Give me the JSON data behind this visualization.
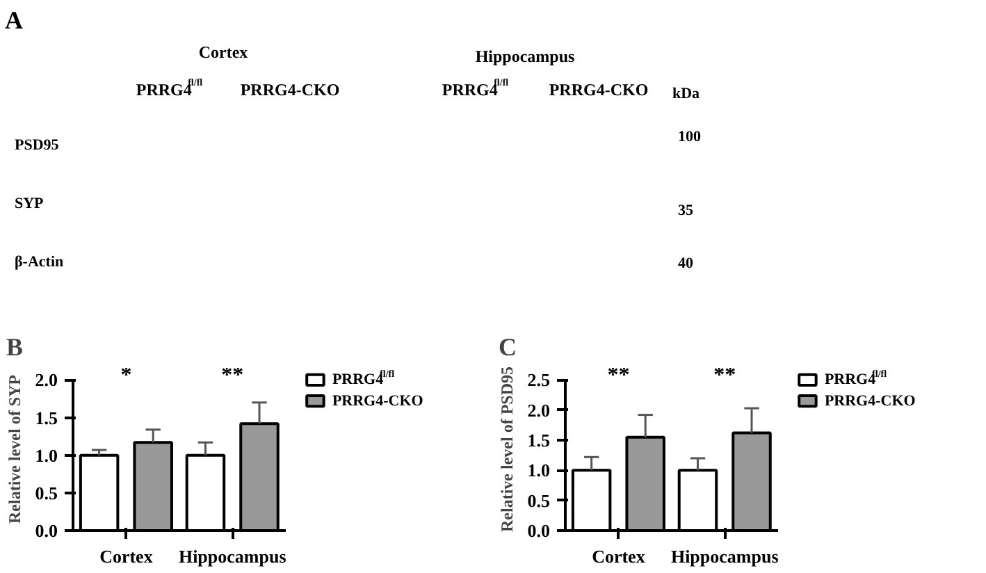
{
  "chart_data": [
    {
      "type": "other",
      "title": "A",
      "annotations": [
        "Cortex",
        "Hippocampus",
        "PRRG4$^{fl/fl}$",
        "PRRG4-CKO",
        "PRRG4$^{fl/fl}$",
        "PRRG4-CKO",
        "kDa",
        "PSD95",
        "SYP",
        "β-Actin",
        "100",
        "35",
        "40"
      ]
    },
    {
      "type": "bar",
      "title": "B",
      "ylabel": "Relative level of SYP",
      "categories": [
        "Cortex",
        "Hippocampus"
      ],
      "series": [
        {
          "name": "PRRG4$^{fl/fl}$",
          "color": "#ffffff",
          "values": [
            1.0,
            1.0
          ],
          "errors": [
            [
              1.0,
              1.07
            ],
            [
              1.0,
              1.17
            ]
          ]
        },
        {
          "name": "PRRG4-CKO",
          "color": "#999999",
          "values": [
            1.17,
            1.42
          ],
          "errors": [
            [
              1.17,
              1.34
            ],
            [
              1.42,
              1.7
            ]
          ]
        }
      ],
      "ylim": [
        0,
        2.0
      ],
      "yticks": [
        {
          "value": 0,
          "label": "0.0"
        },
        {
          "value": 0.5,
          "label": "0.5"
        },
        {
          "value": 1.0,
          "label": "1.0"
        },
        {
          "value": 1.5,
          "label": "1.5"
        },
        {
          "value": 2.0,
          "label": "2.0"
        }
      ],
      "annotations": [
        "*",
        "**"
      ],
      "legend": "right",
      "grid": false
    },
    {
      "type": "bar",
      "title": "C",
      "ylabel": "Relative level of PSD95",
      "categories": [
        "Cortex",
        "Hippocampus"
      ],
      "series": [
        {
          "name": "PRRG4$^{fl/fl}$",
          "color": "#ffffff",
          "values": [
            1.0,
            1.0
          ],
          "errors": [
            [
              1.0,
              1.22
            ],
            [
              1.0,
              1.2
            ]
          ]
        },
        {
          "name": "PRRG4-CKO",
          "color": "#999999",
          "values": [
            1.55,
            1.62
          ],
          "errors": [
            [
              1.55,
              1.92
            ],
            [
              1.62,
              2.03
            ]
          ]
        }
      ],
      "ylim": [
        0,
        2.5
      ],
      "yticks": [
        {
          "value": 0,
          "label": "0.0"
        },
        {
          "value": 0.5,
          "label": "0.5"
        },
        {
          "value": 1.0,
          "label": "1.0"
        },
        {
          "value": 1.5,
          "label": "1.5"
        },
        {
          "value": 2.0,
          "label": "2.0"
        },
        {
          "value": 2.5,
          "label": "2.5"
        }
      ],
      "annotations": [
        "**",
        "**"
      ],
      "legend": "right",
      "grid": false
    }
  ]
}
